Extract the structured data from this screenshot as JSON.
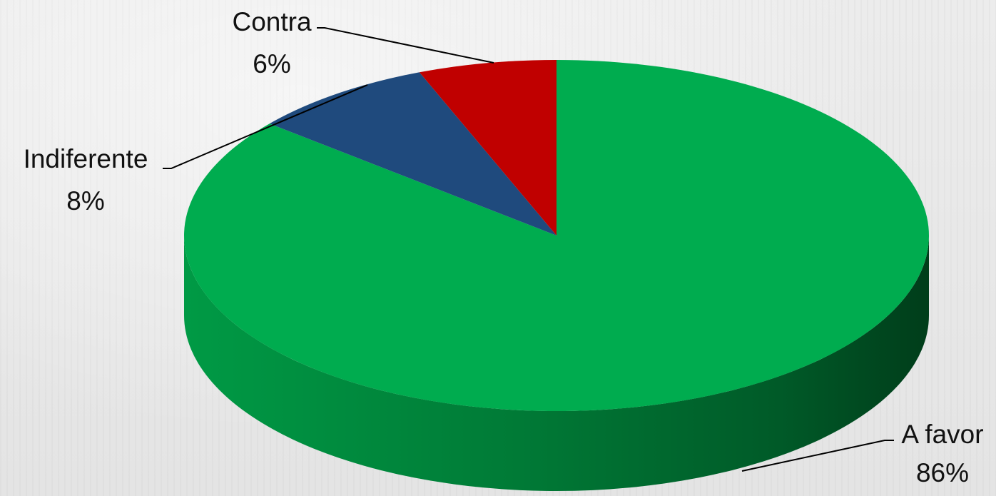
{
  "chart_data": {
    "type": "pie",
    "style": "3d",
    "title": "",
    "slices": [
      {
        "label": "A favor",
        "value": 86,
        "value_label": "86%",
        "color": "#00ac4f",
        "side_color": "#007a36"
      },
      {
        "label": "Indiferente",
        "value": 8,
        "value_label": "8%",
        "color": "#1f4a7d",
        "side_color": "#142f52"
      },
      {
        "label": "Contra",
        "value": 6,
        "value_label": "6%",
        "color": "#c00000",
        "side_color": "#7a0000"
      }
    ],
    "legend": "none",
    "labels_position": "outside-with-leader-lines"
  }
}
